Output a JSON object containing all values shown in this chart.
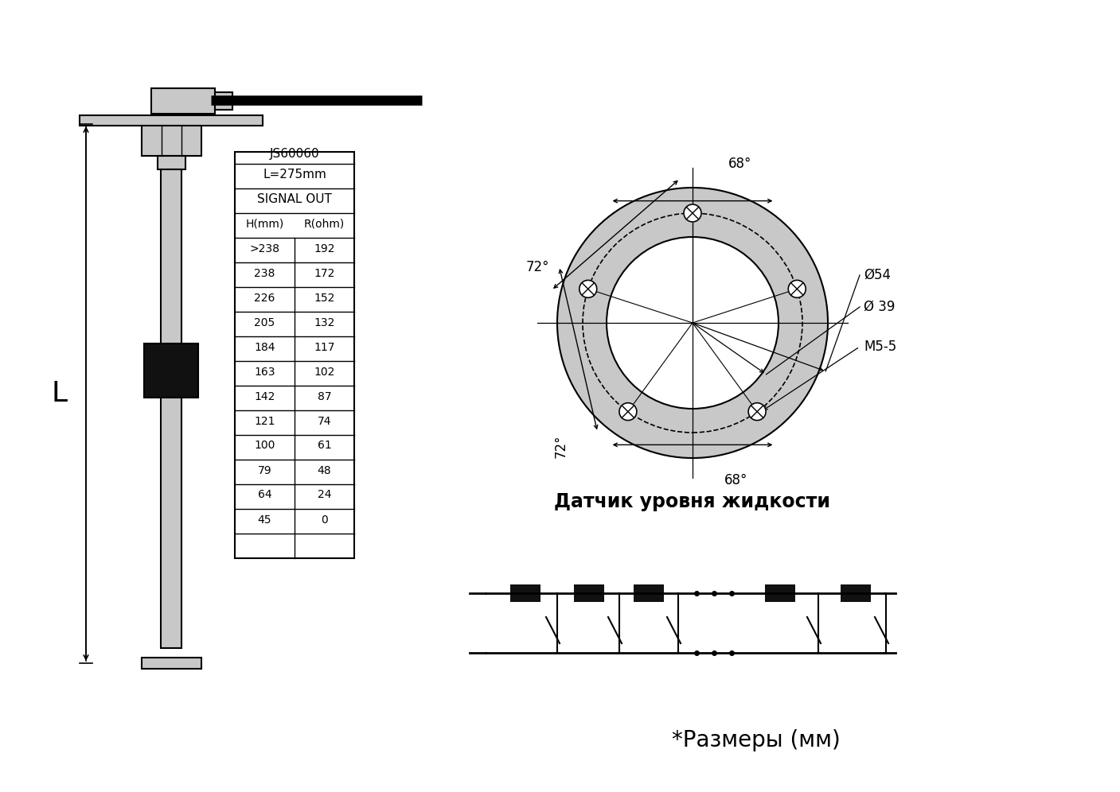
{
  "bg_color": "#ffffff",
  "line_color": "#000000",
  "gray_color": "#c8c8c8",
  "table_title": "JS60060",
  "table_subtitle": "L=275mm",
  "table_header1": "SIGNAL OUT",
  "table_col1": "H(mm)",
  "table_col2": "R(ohm)",
  "table_data": [
    [
      ">238",
      "192"
    ],
    [
      "238",
      "172"
    ],
    [
      "226",
      "152"
    ],
    [
      "205",
      "132"
    ],
    [
      "184",
      "117"
    ],
    [
      "163",
      "102"
    ],
    [
      "142",
      "87"
    ],
    [
      "121",
      "74"
    ],
    [
      "100",
      "61"
    ],
    [
      "79",
      "48"
    ],
    [
      "64",
      "24"
    ],
    [
      "45",
      "0"
    ]
  ],
  "label_L": "L",
  "flange_label": "Датчик уровня жидкости",
  "size_label": "*Размеры (мм)",
  "angle_top": "68°",
  "angle_left": "72°",
  "angle_bot_left": "72°",
  "angle_bot": "68°",
  "diam1": "Ø54",
  "diam2": "Ø 39",
  "m5_label": "M5-5"
}
